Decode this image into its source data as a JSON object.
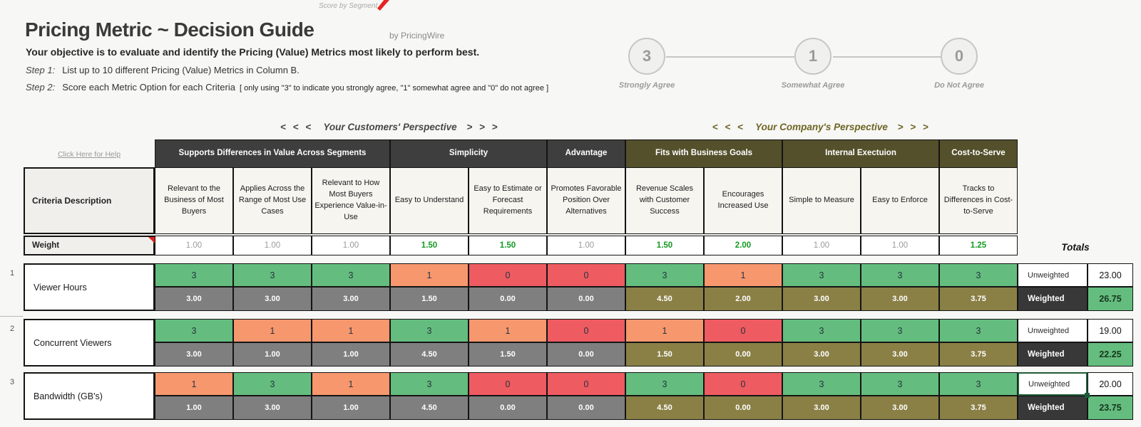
{
  "annotations": {
    "score_by_segment": "Score by Segment"
  },
  "header": {
    "title": "Pricing Metric ~ Decision Guide",
    "byline": "by PricingWire",
    "objective": "Your objective is to evaluate and identify the Pricing (Value) Metrics most likely to perform best.",
    "steps": [
      {
        "label": "Step 1:",
        "text": "List up to 10 different Pricing (Value) Metrics in Column B."
      },
      {
        "label": "Step 2:",
        "text": "Score each Metric Option for each Criteria",
        "note": "[ only using \"3\" to indicate you strongly agree, \"1\" somewhat agree and \"0\" do not agree ]"
      }
    ]
  },
  "scale": {
    "points": [
      {
        "value": "3",
        "label": "Strongly Agree"
      },
      {
        "value": "1",
        "label": "Somewhat Agree"
      },
      {
        "value": "0",
        "label": "Do Not Agree"
      }
    ]
  },
  "perspectives": [
    {
      "prefix": "< < <",
      "label": "Your Customers' Perspective",
      "suffix": "> > >"
    },
    {
      "prefix": "< < <",
      "label": "Your Company's Perspective",
      "suffix": "> > >"
    }
  ],
  "help_link": "Click Here for Help",
  "table": {
    "groups": [
      {
        "label": "Supports Differences in Value Across Segments",
        "cols": 3,
        "theme": "dark"
      },
      {
        "label": "Simplicity",
        "cols": 2,
        "theme": "dark"
      },
      {
        "label": "Advantage",
        "cols": 1,
        "theme": "dark"
      },
      {
        "label": "Fits with Business Goals",
        "cols": 2,
        "theme": "olive"
      },
      {
        "label": "Internal Exectuion",
        "cols": 2,
        "theme": "olive"
      },
      {
        "label": "Cost-to-Serve",
        "cols": 1,
        "theme": "olive"
      }
    ],
    "criteria_row_label": "Criteria Description",
    "criteria": [
      "Relevant to the Business of Most Buyers",
      "Applies Across the Range of Most Use Cases",
      "Relevant to How Most Buyers Experience Value-in-Use",
      "Easy to Understand",
      "Easy to Estimate or Forecast Requirements",
      "Promotes Favorable Position Over Alternatives",
      "Revenue Scales with Customer Success",
      "Encourages Increased Use",
      "Simple to Measure",
      "Easy to Enforce",
      "Tracks to Differences in Cost-to-Serve"
    ],
    "weight_row_label": "Weight",
    "weights": [
      {
        "value": "1.00",
        "green": false
      },
      {
        "value": "1.00",
        "green": false
      },
      {
        "value": "1.00",
        "green": false
      },
      {
        "value": "1.50",
        "green": true
      },
      {
        "value": "1.50",
        "green": true
      },
      {
        "value": "1.00",
        "green": false
      },
      {
        "value": "1.50",
        "green": true
      },
      {
        "value": "2.00",
        "green": true
      },
      {
        "value": "1.00",
        "green": false
      },
      {
        "value": "1.00",
        "green": false
      },
      {
        "value": "1.25",
        "green": true
      }
    ],
    "totals_label": "Totals",
    "unweighted_label": "Unweighted",
    "weighted_label": "Weighted",
    "rows": [
      {
        "num": "1",
        "metric": "Viewer Hours",
        "scores": [
          "3",
          "3",
          "3",
          "1",
          "0",
          "0",
          "3",
          "1",
          "3",
          "3",
          "3"
        ],
        "score_colors": [
          "green",
          "green",
          "green",
          "orange",
          "red",
          "red",
          "green",
          "orange",
          "green",
          "green",
          "green"
        ],
        "weighted": [
          "3.00",
          "3.00",
          "3.00",
          "1.50",
          "0.00",
          "0.00",
          "4.50",
          "2.00",
          "3.00",
          "3.00",
          "3.75"
        ],
        "unweighted_total": "23.00",
        "weighted_total": "26.75",
        "selected": false
      },
      {
        "num": "2",
        "metric": "Concurrent Viewers",
        "scores": [
          "3",
          "1",
          "1",
          "3",
          "1",
          "0",
          "1",
          "0",
          "3",
          "3",
          "3"
        ],
        "score_colors": [
          "green",
          "orange",
          "orange",
          "green",
          "orange",
          "red",
          "orange",
          "red",
          "green",
          "green",
          "green"
        ],
        "weighted": [
          "3.00",
          "1.00",
          "1.00",
          "4.50",
          "1.50",
          "0.00",
          "1.50",
          "0.00",
          "3.00",
          "3.00",
          "3.75"
        ],
        "unweighted_total": "19.00",
        "weighted_total": "22.25",
        "selected": false
      },
      {
        "num": "3",
        "metric": "Bandwidth (GB's)",
        "scores": [
          "1",
          "3",
          "1",
          "3",
          "0",
          "0",
          "3",
          "0",
          "3",
          "3",
          "3"
        ],
        "score_colors": [
          "orange",
          "green",
          "orange",
          "green",
          "red",
          "red",
          "green",
          "red",
          "green",
          "green",
          "green"
        ],
        "weighted": [
          "1.00",
          "3.00",
          "1.00",
          "4.50",
          "0.00",
          "0.00",
          "4.50",
          "0.00",
          "3.00",
          "3.00",
          "3.75"
        ],
        "unweighted_total": "20.00",
        "weighted_total": "23.75",
        "selected": true
      }
    ]
  },
  "colors": {
    "green": "#64bd7e",
    "orange": "#f6976e",
    "red": "#ee5b61",
    "grey_weighted": "#7f7f7f",
    "olive_weighted": "#8a8046",
    "dark_header": "#3e3e3e",
    "olive_header": "#54502b",
    "weighted_total_green": "#64bd7e",
    "weight_highlight_green": "#129b20",
    "selection_green": "#1e5c38"
  }
}
